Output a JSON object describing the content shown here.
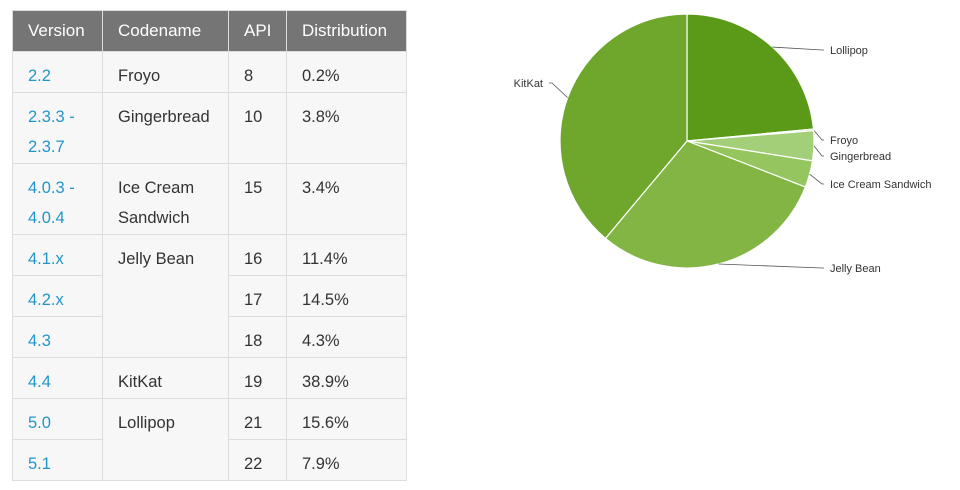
{
  "table": {
    "headers": [
      "Version",
      "Codename",
      "API",
      "Distribution"
    ],
    "rows": [
      {
        "version": "2.2",
        "api": "8",
        "distribution": "0.2%"
      },
      {
        "version": "2.3.3 - 2.3.7",
        "api": "10",
        "distribution": "3.8%"
      },
      {
        "version": "4.0.3 - 4.0.4",
        "api": "15",
        "distribution": "3.4%"
      },
      {
        "version": "4.1.x",
        "api": "16",
        "distribution": "11.4%"
      },
      {
        "version": "4.2.x",
        "api": "17",
        "distribution": "14.5%"
      },
      {
        "version": "4.3",
        "api": "18",
        "distribution": "4.3%"
      },
      {
        "version": "4.4",
        "api": "19",
        "distribution": "38.9%"
      },
      {
        "version": "5.0",
        "api": "21",
        "distribution": "15.6%"
      },
      {
        "version": "5.1",
        "api": "22",
        "distribution": "7.9%"
      }
    ],
    "codenames": [
      "Froyo",
      "Gingerbread",
      "Ice Cream Sandwich",
      "Jelly Bean",
      "KitKat",
      "Lollipop"
    ]
  },
  "chart_data": {
    "type": "pie",
    "categories": [
      "Lollipop",
      "Froyo",
      "Gingerbread",
      "Ice Cream Sandwich",
      "Jelly Bean",
      "KitKat"
    ],
    "values": [
      23.5,
      0.2,
      3.8,
      3.4,
      30.2,
      38.9
    ],
    "colors": [
      "#5a9a18",
      "#a4cf79",
      "#a4cf79",
      "#94c55e",
      "#82b544",
      "#6ea72c"
    ],
    "title": "",
    "legend": "none"
  }
}
